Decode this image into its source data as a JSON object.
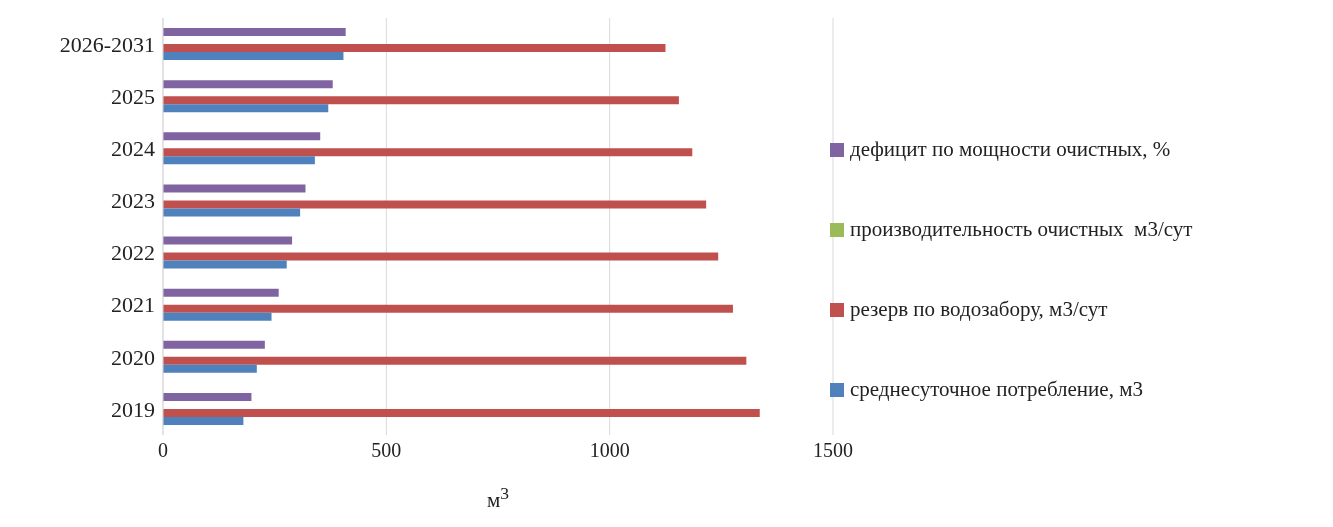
{
  "chart_data": {
    "type": "bar",
    "orientation": "horizontal",
    "xlabel": "м$^{3}$",
    "categories": [
      "2026-2031",
      "2025",
      "2024",
      "2023",
      "2022",
      "2021",
      "2020",
      "2019"
    ],
    "series": [
      {
        "name": "дефицит по мощности очистных, %",
        "color": "#8064a2",
        "values": [
          409,
          380,
          352,
          319,
          289,
          259,
          228,
          198
        ]
      },
      {
        "name": "производительность очистных  м3/сут",
        "color": "#9bbb59",
        "values": [
          null,
          null,
          null,
          null,
          null,
          null,
          null,
          null
        ]
      },
      {
        "name": "резерв по водозабору, м3/сут",
        "color": "#c0504d",
        "values": [
          1125,
          1155,
          1185,
          1216,
          1243,
          1276,
          1306,
          1336
        ]
      },
      {
        "name": "среднесуточное потребление, м3",
        "color": "#4f81bd",
        "values": [
          404,
          370,
          340,
          307,
          277,
          243,
          210,
          180
        ]
      }
    ],
    "xlim": [
      0,
      1500
    ],
    "xticks": [
      0,
      500,
      1000,
      1500
    ],
    "grid": "x",
    "legend": "right"
  }
}
